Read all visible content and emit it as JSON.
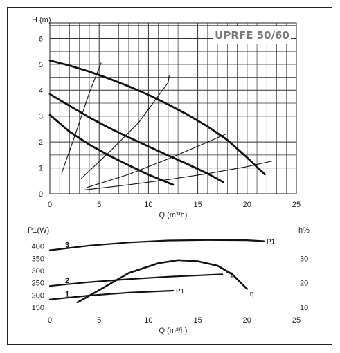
{
  "chart_data": [
    {
      "type": "line",
      "title": "UPRFE 50/60",
      "xlabel": "Q (m³/h)",
      "ylabel": "H (m)",
      "xlim": [
        0,
        25
      ],
      "ylim": [
        0,
        6.6
      ],
      "xticks": [
        "0",
        "5",
        "10",
        "15",
        "20",
        "25"
      ],
      "yticks": [
        "0",
        "1",
        "2",
        "3",
        "4",
        "5",
        "6"
      ],
      "grid": true,
      "series": [
        {
          "x": [
            0,
            2,
            4,
            6,
            8,
            10,
            12,
            14,
            16,
            18,
            20,
            21.8
          ],
          "y": [
            5.15,
            4.95,
            4.72,
            4.45,
            4.15,
            3.82,
            3.45,
            3.05,
            2.6,
            2.08,
            1.4,
            0.75
          ]
        },
        {
          "x": [
            0,
            2,
            4,
            6,
            8,
            10,
            12,
            14,
            16,
            17.6
          ],
          "y": [
            3.85,
            3.4,
            2.95,
            2.55,
            2.18,
            1.83,
            1.48,
            1.14,
            0.78,
            0.45
          ]
        },
        {
          "x": [
            0,
            2,
            4,
            6,
            8,
            10,
            12.5
          ],
          "y": [
            3.05,
            2.4,
            1.9,
            1.48,
            1.1,
            0.74,
            0.35
          ]
        },
        {
          "x": [
            1.2,
            2.5,
            4,
            5.2
          ],
          "y": [
            0.8,
            2.2,
            3.9,
            5.05
          ]
        },
        {
          "x": [
            3.2,
            6,
            9,
            12,
            12.1
          ],
          "y": [
            0.6,
            1.6,
            2.75,
            4.3,
            4.55
          ]
        },
        {
          "x": [
            3.8,
            8,
            12,
            16,
            17.8
          ],
          "y": [
            0.25,
            0.75,
            1.35,
            2.0,
            2.3
          ]
        },
        {
          "x": [
            3.5,
            8,
            12,
            16,
            20,
            22.6
          ],
          "y": [
            0.15,
            0.35,
            0.55,
            0.78,
            1.05,
            1.27
          ]
        }
      ]
    },
    {
      "type": "line",
      "xlabel": "Q (m³/h)",
      "ylabel": "P1(W)",
      "y2label": "h%",
      "xlim": [
        0,
        25
      ],
      "ylim": [
        150,
        430
      ],
      "y2lim": [
        10,
        38
      ],
      "xticks": [
        "0",
        "5",
        "10",
        "15",
        "20",
        "25"
      ],
      "yticks": [
        "150",
        "200",
        "250",
        "300",
        "350",
        "400"
      ],
      "y2ticks": [
        "10",
        "20",
        "30"
      ],
      "series": [
        {
          "name": "P1",
          "speed": "3",
          "x": [
            0,
            4,
            8,
            12,
            16,
            20,
            21.7
          ],
          "y": [
            383,
            402,
            415,
            423,
            425,
            424,
            420
          ]
        },
        {
          "name": "P1",
          "speed": "2",
          "x": [
            0,
            4,
            8,
            12,
            17.5
          ],
          "y": [
            237,
            253,
            265,
            275,
            285
          ]
        },
        {
          "name": "P1",
          "speed": "1",
          "x": [
            0,
            4,
            8,
            12.5
          ],
          "y": [
            182,
            198,
            210,
            218
          ]
        },
        {
          "name": "η",
          "axis": "right",
          "x": [
            2.8,
            5,
            8,
            11,
            13,
            15,
            17,
            18.5,
            20
          ],
          "y": [
            12,
            17,
            24,
            28,
            29.3,
            28.8,
            27,
            23.5,
            17.5
          ]
        }
      ]
    }
  ]
}
